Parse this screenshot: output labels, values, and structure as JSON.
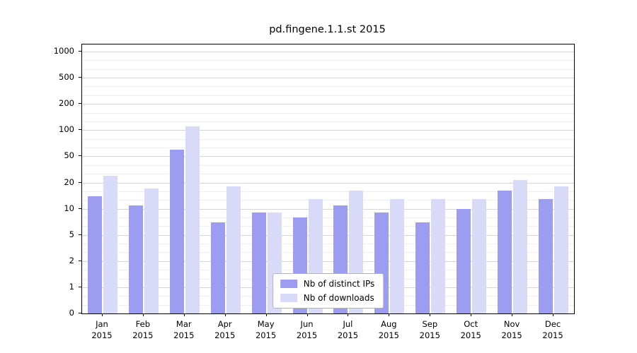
{
  "chart_data": {
    "type": "bar",
    "title": "pd.fingene.1.1.st 2015",
    "categories": [
      "Jan",
      "Feb",
      "Mar",
      "Apr",
      "May",
      "Jun",
      "Jul",
      "Aug",
      "Sep",
      "Oct",
      "Nov",
      "Dec"
    ],
    "x_year_label": "2015",
    "series": [
      {
        "name": "Nb of distinct IPs",
        "color": "#9c9cf0",
        "values": [
          14,
          11,
          60,
          7,
          9,
          8,
          11,
          9,
          7,
          10,
          16,
          13
        ]
      },
      {
        "name": "Nb of downloads",
        "color": "#d9d9f8",
        "values": [
          25,
          17,
          110,
          18,
          9,
          13,
          16,
          13,
          13,
          13,
          22,
          18
        ]
      }
    ],
    "y_ticks": [
      0,
      1,
      2,
      5,
      10,
      20,
      50,
      100,
      200,
      500,
      1000
    ],
    "scale": "even-tick-log-interpolated",
    "grid": true,
    "legend_position": "bottom-center",
    "axis_color": "#000000",
    "grid_major_color": "#d6d6d6",
    "grid_minor_color": "#efefef",
    "background_color": "#ffffff"
  }
}
